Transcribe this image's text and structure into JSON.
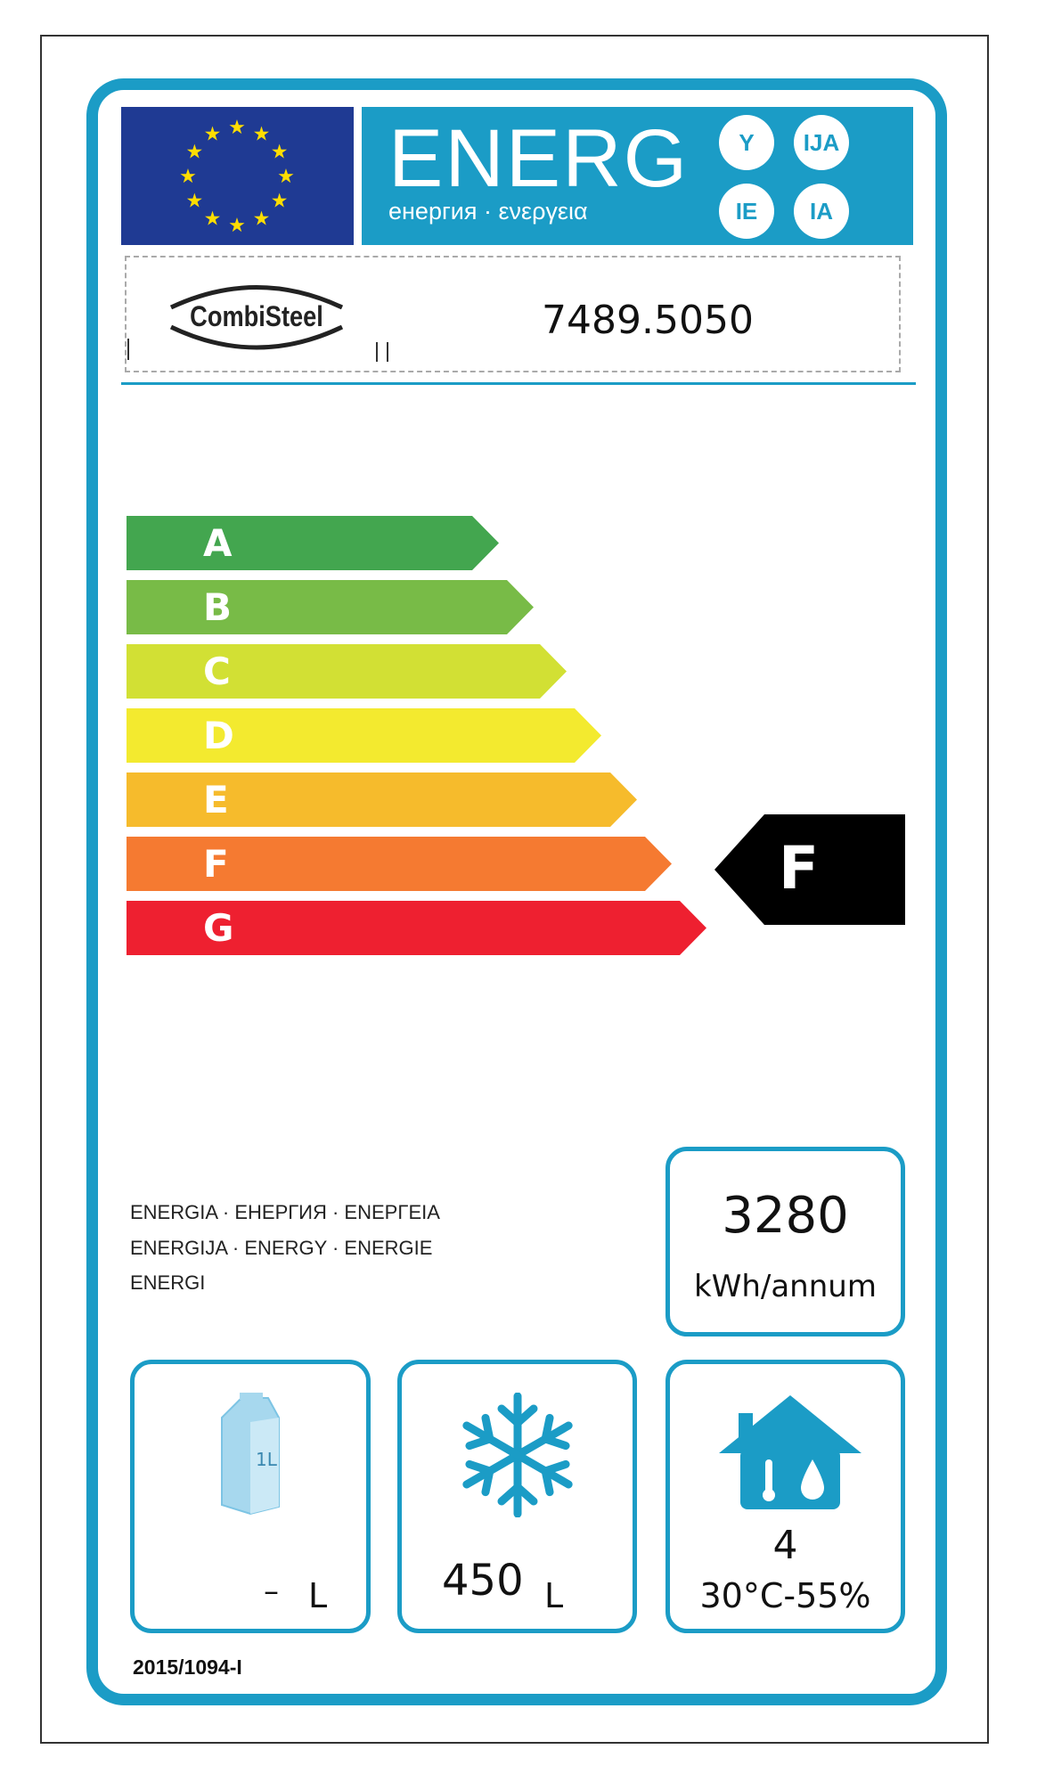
{
  "header": {
    "title": "ENERG",
    "subtitle": "енергия · ενεργεια",
    "suffixes": [
      "Y",
      "IJA",
      "IE",
      "IA"
    ]
  },
  "supplier": {
    "logo_text": "CombiSteel",
    "model": "7489.5050"
  },
  "scale": {
    "classes": [
      "A",
      "B",
      "C",
      "D",
      "E",
      "F",
      "G"
    ],
    "colors": [
      "#43a64f",
      "#78bb47",
      "#d2e034",
      "#f3ea2f",
      "#f6bb2c",
      "#f57a31",
      "#ee2030"
    ],
    "rating": "F"
  },
  "energy_words": [
    "ENERGIA  · ЕНЕРГИЯ · ΕΝΕΡΓΕΙΑ",
    "ENERGIJA · ENERGY  · ENERGIE",
    "ENERGI"
  ],
  "consumption": {
    "value": "3280",
    "unit": "kWh/annum"
  },
  "chill_volume": {
    "icon": "milk-carton-icon",
    "carton_label": "1L",
    "value": "–",
    "unit": "L"
  },
  "frozen_volume": {
    "icon": "snowflake-icon",
    "value": "450",
    "unit": "L"
  },
  "climate": {
    "icon": "house-climate-icon",
    "class": "4",
    "conditions": "30°C-55%"
  },
  "regulation": "2015/1094-I",
  "colors": {
    "frame": "#1b9cc6",
    "eu_blue": "#1f3a93",
    "eu_star": "#ffdd00"
  }
}
